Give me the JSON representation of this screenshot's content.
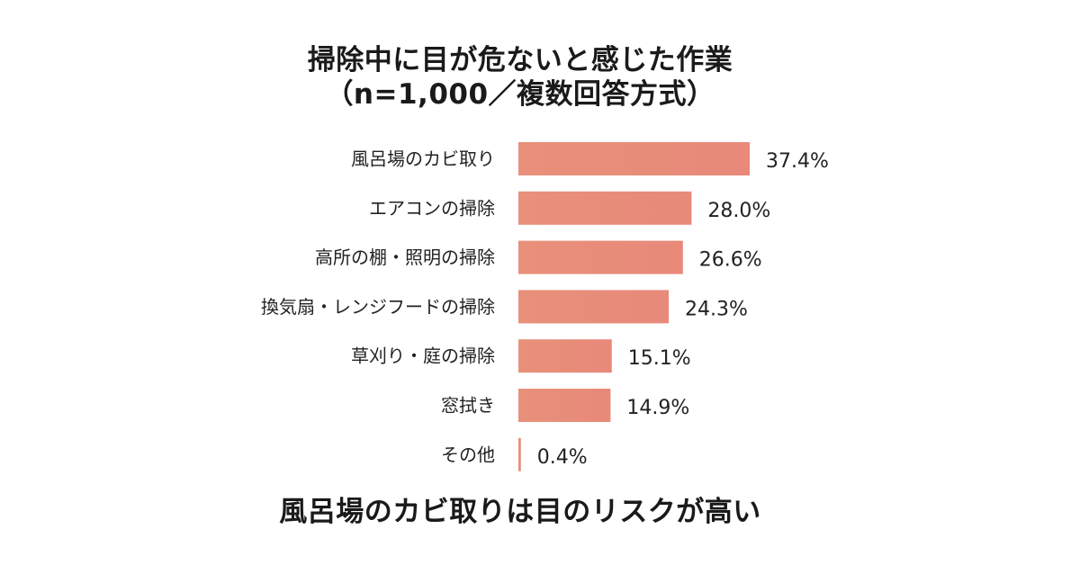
{
  "chart_data": {
    "type": "bar",
    "orientation": "horizontal",
    "title": "掃除中に目が危ないと感じた作業",
    "subtitle": "（n=1,000／複数回答方式）",
    "categories": [
      "風呂場のカビ取り",
      "エアコンの掃除",
      "高所の棚・照明の掃除",
      "換気扇・レンジフードの掃除",
      "草刈り・庭の掃除",
      "窓拭き",
      "その他"
    ],
    "values": [
      37.4,
      28.0,
      26.6,
      24.3,
      15.1,
      14.9,
      0.4
    ],
    "value_labels": [
      "37.4%",
      "28.0%",
      "26.6%",
      "24.3%",
      "15.1%",
      "14.9%",
      "0.4%"
    ],
    "unit": "%",
    "xlim": [
      0,
      37.4
    ],
    "grid": false,
    "legend": "none",
    "bar_color": "#e88b76"
  },
  "footer_text": "風呂場のカビ取りは目のリスクが高い"
}
